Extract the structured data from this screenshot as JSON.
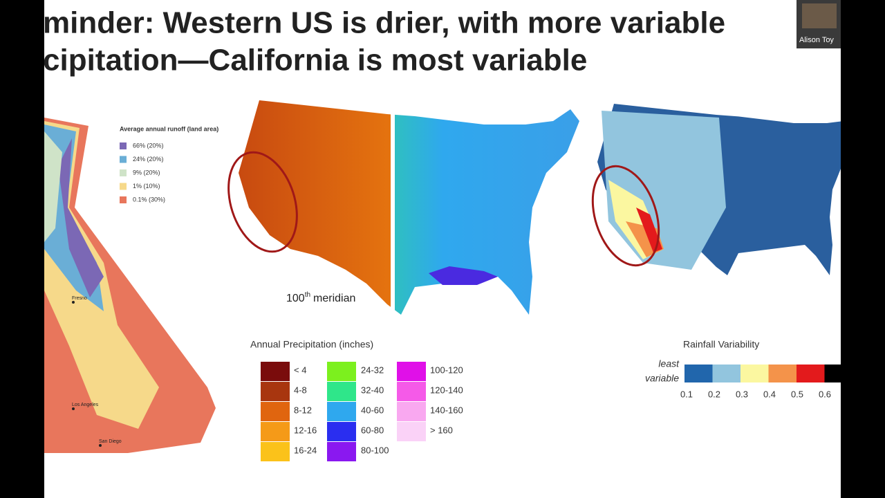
{
  "title_lines": [
    "minder: Western US is drier, with more variable",
    "cipitation—California is most variable"
  ],
  "video_tile": {
    "name": "Alison Toy"
  },
  "runoff_map": {
    "legend_title": "Average annual runoff (land area)",
    "legend": [
      {
        "label": "66% (20%)",
        "color": "#7b68b5"
      },
      {
        "label": "24% (20%)",
        "color": "#6aaed6"
      },
      {
        "label": "9% (20%)",
        "color": "#cfe3c8"
      },
      {
        "label": "1% (10%)",
        "color": "#f6d98a"
      },
      {
        "label": "0.1% (30%)",
        "color": "#e8765c"
      }
    ],
    "cities": [
      "Fresno",
      "Los Angeles",
      "San Diego"
    ]
  },
  "precip_map": {
    "meridian_label": {
      "number": "100",
      "suffix": "th",
      "word": "meridian"
    },
    "legend_title": "Annual Precipitation (inches)",
    "legend": [
      {
        "label": "< 4",
        "color": "#7a0c0c"
      },
      {
        "label": "4-8",
        "color": "#a8360f"
      },
      {
        "label": "8-12",
        "color": "#e0650f"
      },
      {
        "label": "12-16",
        "color": "#f59a18"
      },
      {
        "label": "16-24",
        "color": "#fbc21a"
      },
      {
        "label": "24-32",
        "color": "#7cf01e"
      },
      {
        "label": "32-40",
        "color": "#2fe68a"
      },
      {
        "label": "40-60",
        "color": "#2fa8ee"
      },
      {
        "label": "60-80",
        "color": "#2a2ef0"
      },
      {
        "label": "80-100",
        "color": "#8a18f0"
      },
      {
        "label": "100-120",
        "color": "#e010e8"
      },
      {
        "label": "120-140",
        "color": "#f55ae8"
      },
      {
        "label": "140-160",
        "color": "#f9a8f0"
      },
      {
        "label": "> 160",
        "color": "#fad2f7"
      }
    ]
  },
  "variability_map": {
    "title": "Rainfall Variability",
    "least_label": [
      "least",
      "variable"
    ],
    "colors": [
      "#2166ac",
      "#92c5de",
      "#fbf7a0",
      "#f4934a",
      "#e31a1c",
      "#000000"
    ],
    "ticks": [
      "0.1",
      "0.2",
      "0.3",
      "0.4",
      "0.5",
      "0.6"
    ]
  }
}
